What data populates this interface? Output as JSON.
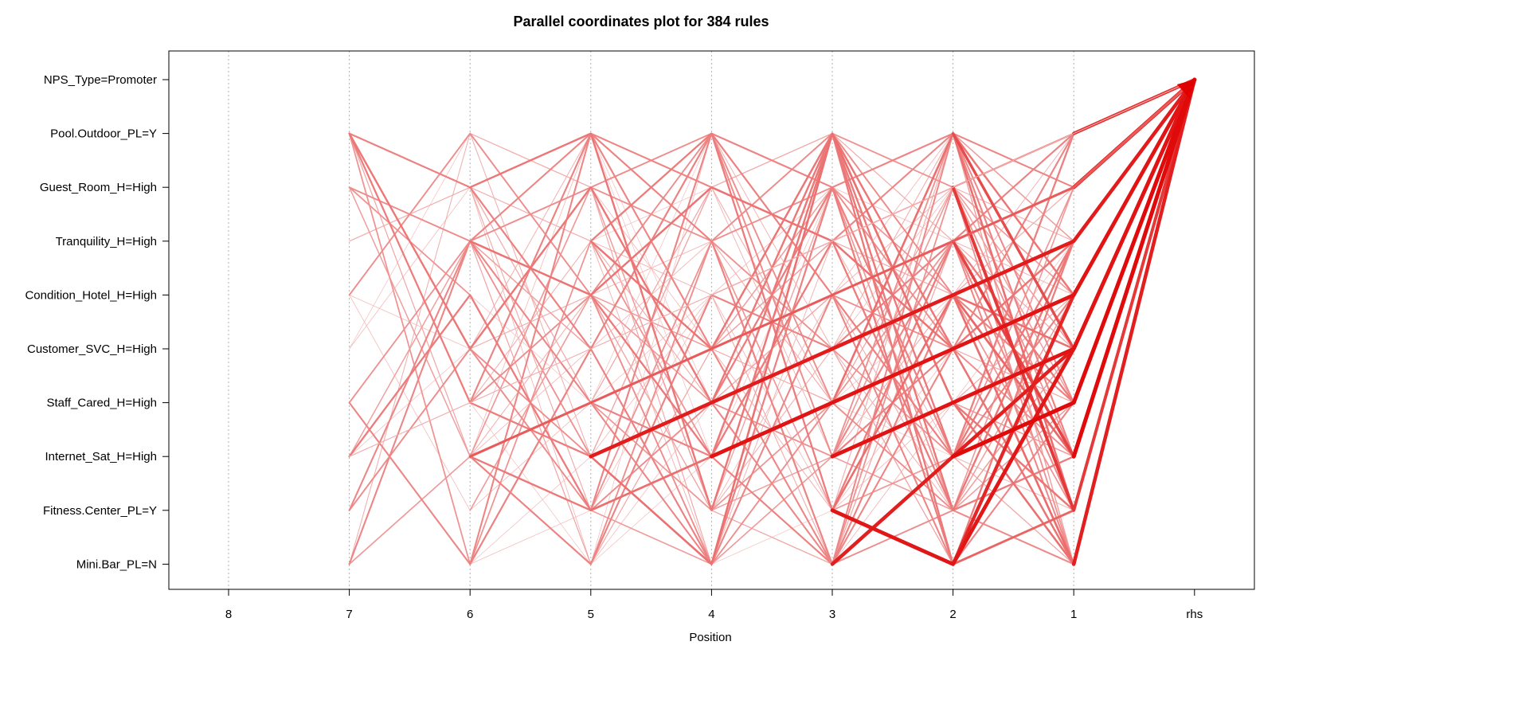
{
  "chart_data": {
    "type": "parallel-coordinates",
    "title": "Parallel coordinates plot for 384 rules",
    "xlabel": "Position",
    "ylabel": "",
    "x_positions": [
      "8",
      "7",
      "6",
      "5",
      "4",
      "3",
      "2",
      "1",
      "rhs"
    ],
    "y_items": [
      "NPS_Type=Promoter",
      "Pool.Outdoor_PL=Y",
      "Guest_Room_H=High",
      "Tranquility_H=High",
      "Condition_Hotel_H=High",
      "Customer_SVC_H=High",
      "Staff_Cared_H=High",
      "Internet_Sat_H=High",
      "Fitness.Center_PL=Y",
      "Mini.Bar_PL=N"
    ],
    "rule_count": 384,
    "grid": true,
    "color": "#e00000",
    "lines_note": "line width and color intensity encode lift; every rule ends at rhs NPS_Type=Promoter",
    "rules": [
      {
        "path": [
          "Internet_Sat_H=High",
          "Staff_Cared_H=High",
          "Customer_SVC_H=High",
          "Condition_Hotel_H=High",
          "Tranquility_H=High",
          "Guest_Room_H=High",
          "Pool.Outdoor_PL=Y",
          "NPS_Type=Promoter"
        ],
        "strength": 0.1
      },
      {
        "path": [
          "Internet_Sat_H=High",
          "Staff_Cared_H=High",
          "Customer_SVC_H=High",
          "Condition_Hotel_H=High",
          "Tranquility_H=High",
          "Guest_Room_H=High",
          "NPS_Type=Promoter"
        ],
        "strength": 0.55
      },
      {
        "path": [
          "Internet_Sat_H=High",
          "Staff_Cared_H=High",
          "Customer_SVC_H=High",
          "Condition_Hotel_H=High",
          "Tranquility_H=High",
          "NPS_Type=Promoter"
        ],
        "strength": 0.9
      },
      {
        "path": [
          "Internet_Sat_H=High",
          "Staff_Cared_H=High",
          "Customer_SVC_H=High",
          "Condition_Hotel_H=High",
          "NPS_Type=Promoter"
        ],
        "strength": 0.95
      },
      {
        "path": [
          "Internet_Sat_H=High",
          "Staff_Cared_H=High",
          "Customer_SVC_H=High",
          "NPS_Type=Promoter"
        ],
        "strength": 0.95
      },
      {
        "path": [
          "Internet_Sat_H=High",
          "Staff_Cared_H=High",
          "NPS_Type=Promoter"
        ],
        "strength": 1.0
      },
      {
        "path": [
          "Internet_Sat_H=High",
          "NPS_Type=Promoter"
        ],
        "strength": 1.0
      }
    ]
  }
}
